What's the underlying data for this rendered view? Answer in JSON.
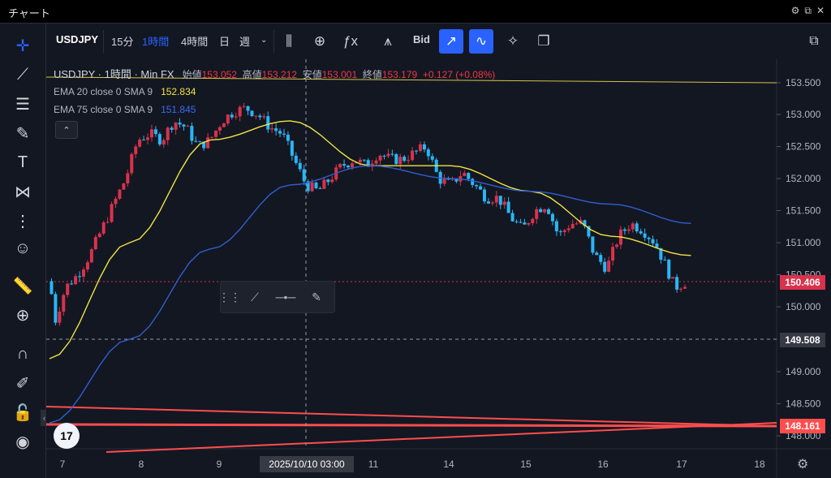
{
  "window": {
    "title": "チャート"
  },
  "toolbar": {
    "symbol": "USDJPY",
    "intervals": [
      "15分",
      "1時間",
      "4時間",
      "日",
      "週"
    ],
    "active_interval": "1時間",
    "price_source": "Bid"
  },
  "legend": {
    "symbol_line": "USDJPY · 1時間 · Min FX",
    "open_label": "始値",
    "open": "153.052",
    "high_label": "高値",
    "high": "153.212",
    "low_label": "安値",
    "low": "153.001",
    "close_label": "終値",
    "close": "153.179",
    "change": "+0.127 (+0.08%)",
    "ema20_label": "EMA 20 close 0 SMA 9",
    "ema20_value": "152.834",
    "ema75_label": "EMA 75 close 0 SMA 9",
    "ema75_value": "151.845"
  },
  "tags": {
    "last_price": "150.406",
    "crosshair_price": "149.508",
    "line_price": "148.161"
  },
  "crosshair_date": "2025/10/10   03:00",
  "logo_text": "17",
  "colors": {
    "up": "#d8324d",
    "down": "#29b6f6",
    "ema20": "#f0e442",
    "ema75": "#2f5fd0",
    "trend_red": "#ff4d4d",
    "bg": "#131722"
  },
  "chart_data": {
    "type": "candlestick",
    "y_ticks": [
      "153.500",
      "153.000",
      "152.500",
      "152.000",
      "151.500",
      "151.000",
      "150.500",
      "150.000",
      "149.000",
      "148.500",
      "148.000"
    ],
    "x_ticks": [
      "7",
      "8",
      "9",
      "11",
      "14",
      "15",
      "16",
      "17",
      "18"
    ],
    "ylim": [
      147.9,
      153.9
    ],
    "approx_close_path": [
      [
        0,
        150.4
      ],
      [
        3,
        149.8
      ],
      [
        8,
        150.3
      ],
      [
        14,
        150.5
      ],
      [
        20,
        150.8
      ],
      [
        26,
        151.2
      ],
      [
        32,
        151.6
      ],
      [
        38,
        152.0
      ],
      [
        44,
        152.6
      ],
      [
        50,
        152.7
      ],
      [
        56,
        152.6
      ],
      [
        62,
        152.9
      ],
      [
        68,
        152.8
      ],
      [
        74,
        152.5
      ],
      [
        80,
        152.6
      ],
      [
        86,
        152.9
      ],
      [
        92,
        153.05
      ],
      [
        98,
        153.1
      ],
      [
        104,
        153.0
      ],
      [
        110,
        152.8
      ],
      [
        116,
        152.7
      ],
      [
        122,
        152.3
      ],
      [
        128,
        151.9
      ],
      [
        134,
        151.8
      ],
      [
        140,
        152.0
      ],
      [
        146,
        152.2
      ],
      [
        152,
        152.3
      ],
      [
        158,
        152.2
      ],
      [
        164,
        152.4
      ],
      [
        170,
        152.3
      ],
      [
        176,
        152.3
      ],
      [
        182,
        152.4
      ],
      [
        188,
        152.5
      ],
      [
        194,
        152.0
      ],
      [
        200,
        151.9
      ],
      [
        206,
        152.1
      ],
      [
        212,
        151.9
      ],
      [
        218,
        151.7
      ],
      [
        224,
        151.7
      ],
      [
        230,
        151.4
      ],
      [
        236,
        151.2
      ],
      [
        242,
        151.5
      ],
      [
        248,
        151.6
      ],
      [
        254,
        151.1
      ],
      [
        260,
        151.3
      ],
      [
        266,
        151.3
      ],
      [
        272,
        150.8
      ],
      [
        278,
        150.6
      ],
      [
        284,
        151.1
      ],
      [
        290,
        151.3
      ],
      [
        296,
        151.2
      ],
      [
        302,
        151.0
      ],
      [
        308,
        150.6
      ],
      [
        312,
        150.3
      ],
      [
        318,
        150.4
      ]
    ],
    "ema20_path": [
      [
        0,
        149.2
      ],
      [
        40,
        151.0
      ],
      [
        80,
        152.6
      ],
      [
        120,
        152.9
      ],
      [
        160,
        152.2
      ],
      [
        200,
        152.2
      ],
      [
        240,
        151.8
      ],
      [
        280,
        151.1
      ],
      [
        320,
        150.8
      ]
    ],
    "ema75_path": [
      [
        0,
        148.2
      ],
      [
        40,
        149.5
      ],
      [
        80,
        150.9
      ],
      [
        120,
        151.9
      ],
      [
        160,
        152.2
      ],
      [
        200,
        152.0
      ],
      [
        240,
        151.8
      ],
      [
        280,
        151.6
      ],
      [
        320,
        151.3
      ]
    ]
  }
}
